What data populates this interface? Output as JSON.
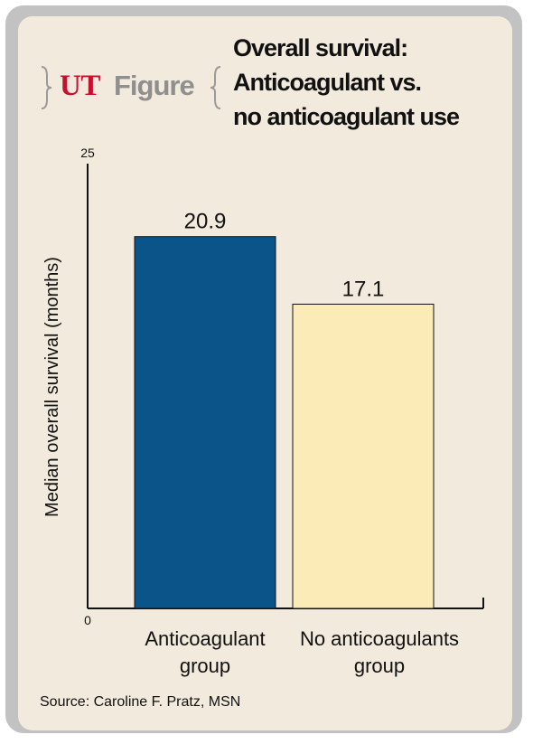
{
  "brand": {
    "mark": "UT",
    "word": "Figure"
  },
  "title_lines": [
    "Overall survival:",
    "Anticoagulant vs.",
    "no anticoagulant use"
  ],
  "source": "Source: Caroline F. Pratz, MSN",
  "colors": {
    "frame": "#c2c2c2",
    "panel": "#f2ebdd",
    "brand_red": "#c8102e",
    "brand_gray": "#8f8f8f",
    "series": [
      "#0b5489",
      "#fbecb7"
    ]
  },
  "chart_data": {
    "type": "bar",
    "title": "Overall survival: Anticoagulant vs. no anticoagulant use",
    "ylabel": "Median overall survival (months)",
    "xlabel": "",
    "ylim": [
      0,
      25
    ],
    "yticks": [
      0,
      25
    ],
    "grid": false,
    "legend": "none",
    "categories": [
      [
        "Anticoagulant",
        "group"
      ],
      [
        "No anticoagulants",
        "group"
      ]
    ],
    "values": [
      20.9,
      17.1
    ],
    "value_labels": [
      "20.9",
      "17.1"
    ]
  }
}
